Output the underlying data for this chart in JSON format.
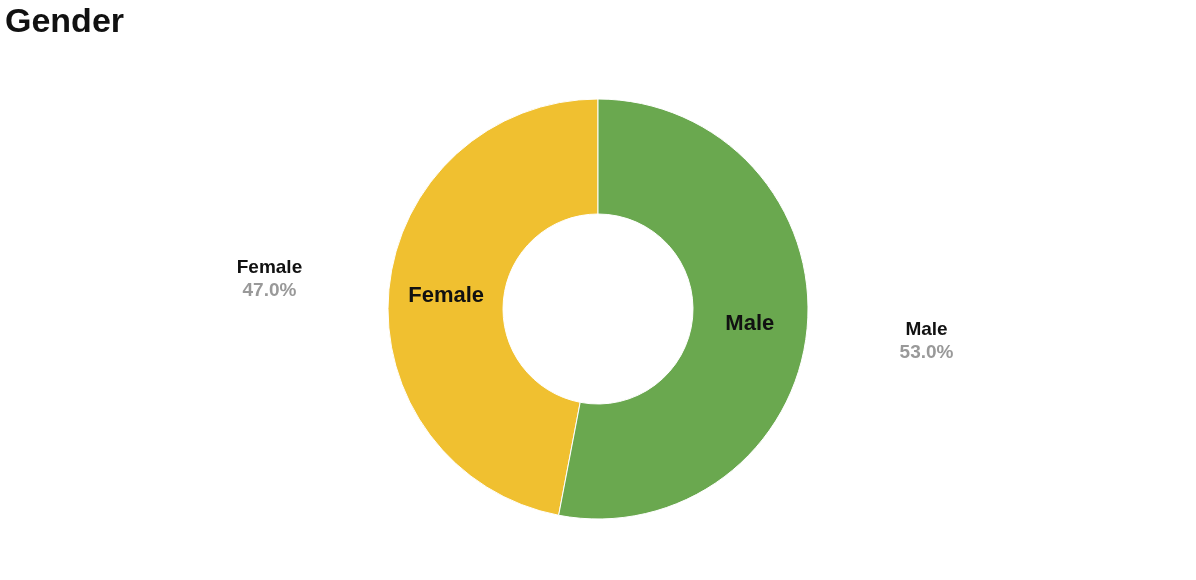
{
  "chart_data": {
    "type": "donut",
    "title": "Gender",
    "categories": [
      "Female",
      "Male"
    ],
    "values": [
      47.0,
      53.0
    ],
    "colors": [
      "#f0c030",
      "#6aa84f"
    ],
    "value_labels": [
      "47.0%",
      "53.0%"
    ]
  }
}
